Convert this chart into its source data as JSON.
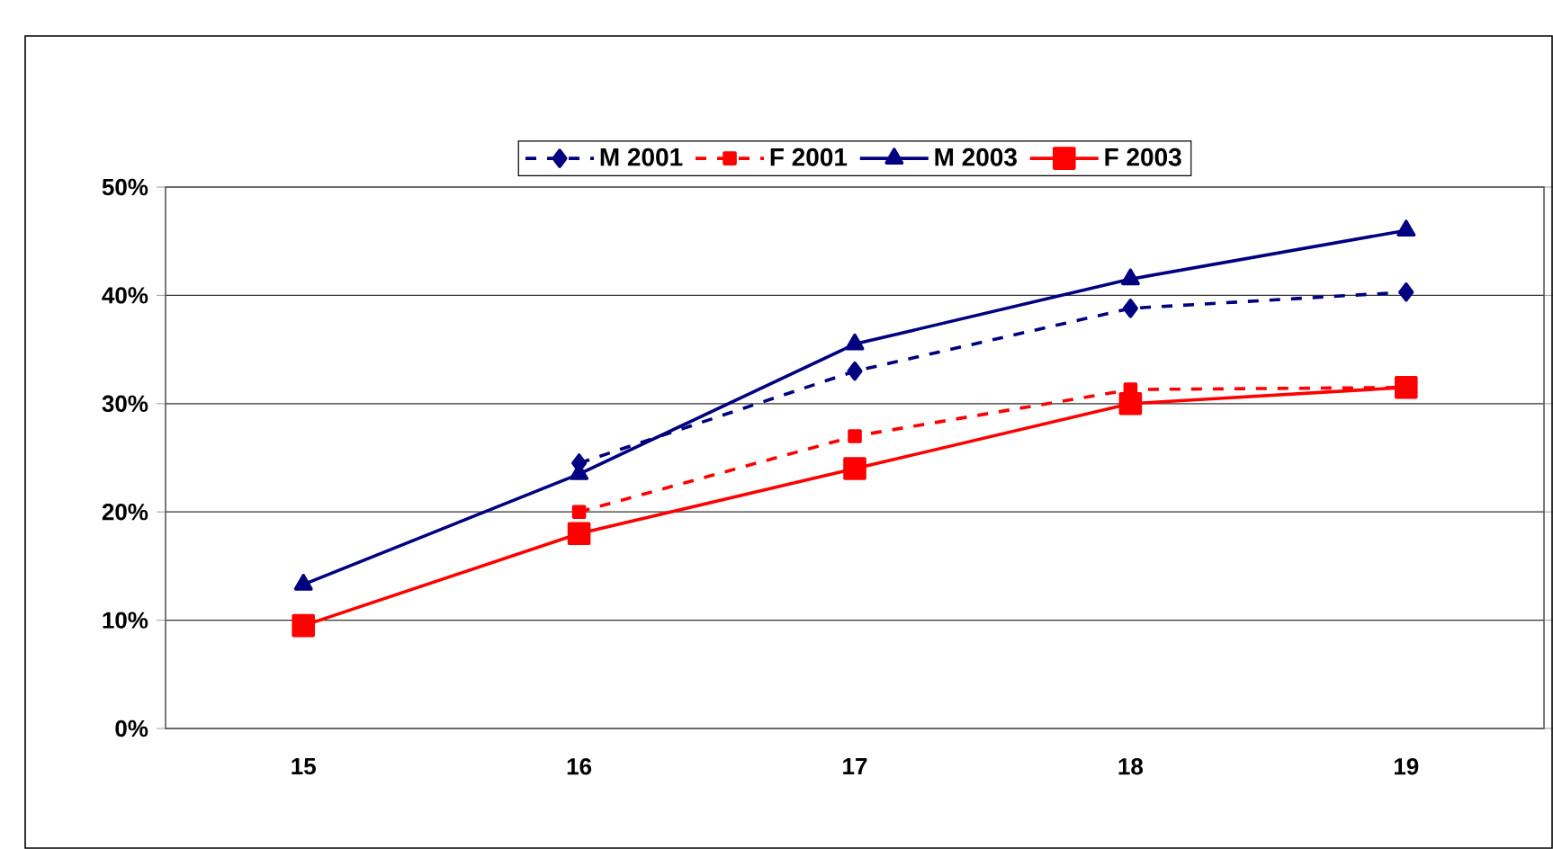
{
  "chart_data": {
    "type": "line",
    "categories": [
      "15",
      "16",
      "17",
      "18",
      "19"
    ],
    "series": [
      {
        "name": "M 2001",
        "color": "#000080",
        "marker": "diamond",
        "line_style": "dashed",
        "values": [
          null,
          24.5,
          33,
          38.8,
          40.3
        ]
      },
      {
        "name": "F 2001",
        "color": "#ff0000",
        "marker": "square",
        "line_style": "dashed",
        "values": [
          null,
          20,
          27,
          31.3,
          31.5
        ]
      },
      {
        "name": "M 2003",
        "color": "#000080",
        "marker": "triangle",
        "line_style": "solid",
        "values": [
          13.3,
          23.5,
          35.5,
          41.5,
          46
        ]
      },
      {
        "name": "F 2003",
        "color": "#ff0000",
        "marker": "square",
        "line_style": "solid",
        "values": [
          9.5,
          18,
          24,
          30,
          31.5
        ]
      }
    ],
    "ylim": [
      0,
      50
    ],
    "yticks": [
      {
        "value": 0,
        "label": "0%"
      },
      {
        "value": 10,
        "label": "10%"
      },
      {
        "value": 20,
        "label": "20%"
      },
      {
        "value": 30,
        "label": "30%"
      },
      {
        "value": 40,
        "label": "40%"
      },
      {
        "value": 50,
        "label": "50%"
      }
    ],
    "grid": "y",
    "legend": "top"
  }
}
